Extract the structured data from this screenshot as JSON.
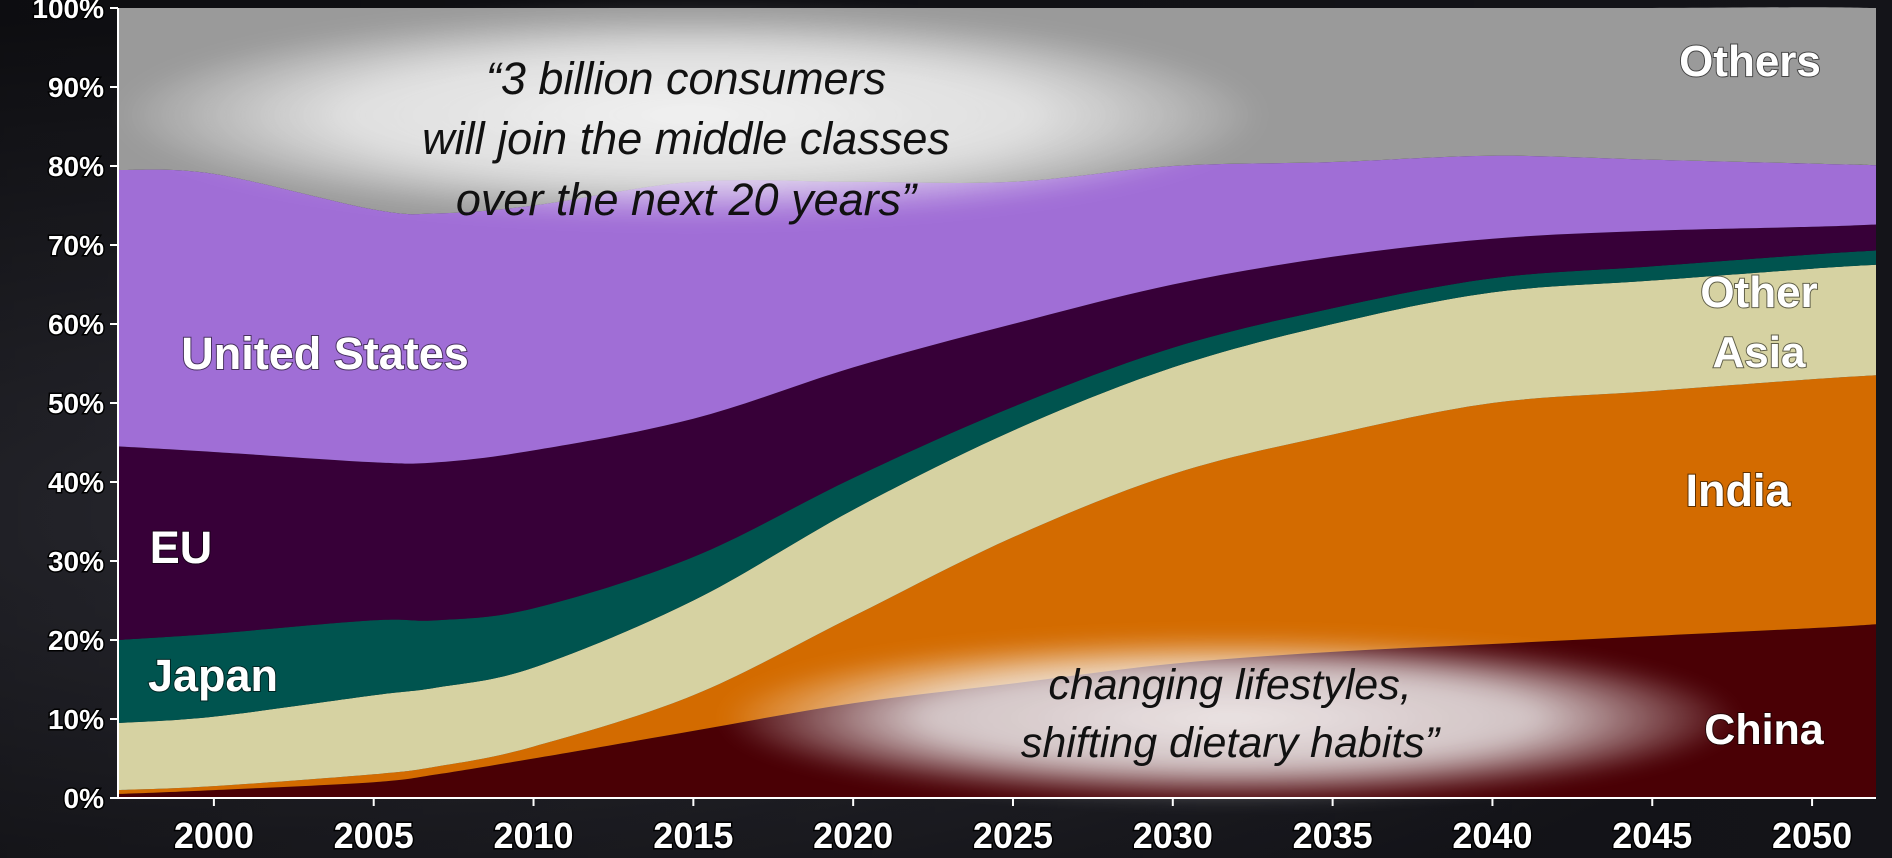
{
  "chart_data": {
    "type": "area",
    "stacked": true,
    "title": "",
    "xlabel": "",
    "ylabel": "",
    "x": [
      1997,
      2000,
      2005,
      2007,
      2010,
      2015,
      2020,
      2025,
      2030,
      2035,
      2040,
      2045,
      2050,
      2052
    ],
    "xticks": [
      "2000",
      "2005",
      "2010",
      "2015",
      "2020",
      "2025",
      "2030",
      "2035",
      "2040",
      "2045",
      "2050"
    ],
    "xlim": [
      1997,
      2052
    ],
    "ylim": [
      0,
      100
    ],
    "yticks": [
      "0%",
      "10%",
      "20%",
      "30%",
      "40%",
      "50%",
      "60%",
      "70%",
      "80%",
      "90%",
      "100%"
    ],
    "grid": false,
    "legend": "none",
    "series": [
      {
        "name": "China",
        "color": "#4a0005",
        "values": [
          0.5,
          1,
          2,
          3,
          5,
          8.5,
          12,
          14.5,
          17,
          18.5,
          19.5,
          20.5,
          21.5,
          22
        ]
      },
      {
        "name": "India",
        "color": "#d36b00",
        "values": [
          0.5,
          0.5,
          1,
          1,
          1.5,
          4.5,
          11,
          18.5,
          24,
          27.5,
          30.5,
          31,
          31.5,
          31.5
        ]
      },
      {
        "name": "Other Asia",
        "color": "#d6d2a2",
        "values": [
          8.5,
          8.8,
          10,
          10,
          10,
          12,
          13.5,
          13.5,
          13.5,
          14,
          14,
          14,
          14,
          14
        ]
      },
      {
        "name": "Japan",
        "color": "#00544f",
        "values": [
          10.5,
          10.5,
          9.5,
          8.5,
          7.5,
          5.5,
          4,
          3,
          2.5,
          2,
          1.8,
          1.8,
          1.8,
          1.8
        ]
      },
      {
        "name": "EU",
        "color": "#370038",
        "values": [
          24.5,
          23,
          20,
          20,
          20,
          17.5,
          14,
          10.5,
          8,
          6.5,
          5,
          4.5,
          3.5,
          3.3
        ]
      },
      {
        "name": "United States",
        "color": "#a06ed6",
        "values": [
          35,
          35.2,
          32,
          31.5,
          31,
          30,
          23.5,
          18,
          15,
          12,
          10.5,
          9,
          8,
          7.5
        ]
      },
      {
        "name": "Others",
        "color": "#9a9a9a",
        "values": [
          20.5,
          21,
          25.5,
          26,
          25,
          22,
          22,
          22,
          20,
          19.5,
          18.7,
          19.2,
          19.8,
          19.9
        ]
      }
    ],
    "area_labels": [
      {
        "series": "Others",
        "text": "Others"
      },
      {
        "series": "United States",
        "text": "United States"
      },
      {
        "series": "EU",
        "text": "EU"
      },
      {
        "series": "Japan",
        "text": "Japan"
      },
      {
        "series": "Other Asia",
        "text": "Other Asia",
        "lines": [
          "Other",
          "Asia"
        ]
      },
      {
        "series": "India",
        "text": "India"
      },
      {
        "series": "China",
        "text": "China"
      }
    ],
    "annotations": [
      {
        "lines": [
          "“3 billion consumers",
          "will join the middle classes",
          "over the next 20 years”"
        ]
      },
      {
        "lines": [
          "changing lifestyles,",
          "shifting dietary habits”"
        ]
      }
    ]
  }
}
